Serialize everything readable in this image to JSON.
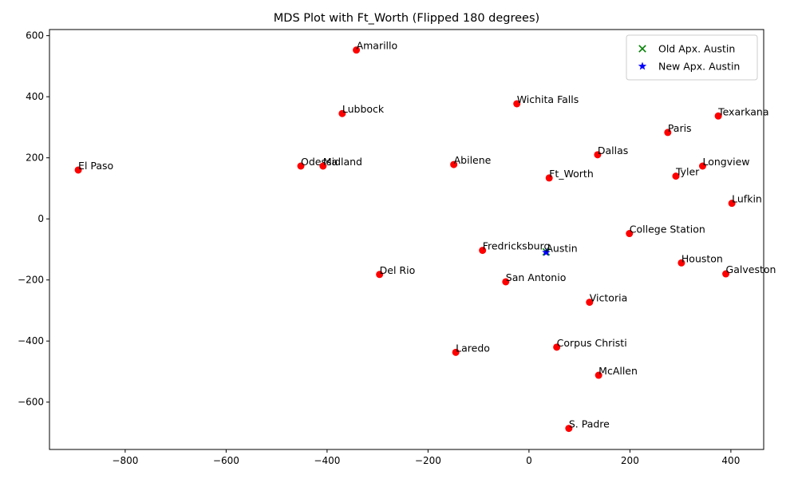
{
  "chart_data": {
    "type": "scatter",
    "title": "MDS Plot with Ft_Worth (Flipped 180 degrees)",
    "xlabel": "",
    "ylabel": "",
    "xlim": [
      -950,
      465
    ],
    "ylim": [
      -755,
      620
    ],
    "x_ticks": [
      -800,
      -600,
      -400,
      -200,
      0,
      200,
      400
    ],
    "y_ticks": [
      -600,
      -400,
      -200,
      0,
      200,
      400,
      600
    ],
    "grid": false,
    "legend_position": "top-right",
    "series": [
      {
        "color": "#ff0000",
        "marker": "circle",
        "points": [
          {
            "label": "Amarillo",
            "x": -342,
            "y": 553
          },
          {
            "label": "Wichita Falls",
            "x": -24,
            "y": 377
          },
          {
            "label": "Texarkana",
            "x": 375,
            "y": 337
          },
          {
            "label": "Lubbock",
            "x": -370,
            "y": 345
          },
          {
            "label": "Paris",
            "x": 275,
            "y": 283
          },
          {
            "label": "Dallas",
            "x": 136,
            "y": 210
          },
          {
            "label": "El Paso",
            "x": -893,
            "y": 160
          },
          {
            "label": "Odessa",
            "x": -452,
            "y": 173
          },
          {
            "label": "Midland",
            "x": -408,
            "y": 173
          },
          {
            "label": "Abilene",
            "x": -149,
            "y": 178
          },
          {
            "label": "Longview",
            "x": 344,
            "y": 173
          },
          {
            "label": "Tyler",
            "x": 291,
            "y": 140
          },
          {
            "label": "Ft_Worth",
            "x": 40,
            "y": 134
          },
          {
            "label": "Lufkin",
            "x": 402,
            "y": 51
          },
          {
            "label": "College Station",
            "x": 199,
            "y": -48
          },
          {
            "label": "Fredricksburg",
            "x": -92,
            "y": -103
          },
          {
            "label": "Houston",
            "x": 302,
            "y": -144
          },
          {
            "label": "Galveston",
            "x": 390,
            "y": -180
          },
          {
            "label": "Del Rio",
            "x": -296,
            "y": -182
          },
          {
            "label": "San Antonio",
            "x": -46,
            "y": -206
          },
          {
            "label": "Victoria",
            "x": 120,
            "y": -273
          },
          {
            "label": "Laredo",
            "x": -145,
            "y": -437
          },
          {
            "label": "Corpus Christi",
            "x": 55,
            "y": -420
          },
          {
            "label": "McAllen",
            "x": 138,
            "y": -512
          },
          {
            "label": "S. Padre",
            "x": 79,
            "y": -686
          }
        ]
      },
      {
        "name": "Old Apx. Austin",
        "color": "#008000",
        "marker": "x",
        "points": [
          {
            "label": "",
            "x": 34,
            "y": -108
          }
        ]
      },
      {
        "name": "New Apx. Austin",
        "color": "#0000ff",
        "marker": "star",
        "points": [
          {
            "label": "Austin",
            "x": 34,
            "y": -110
          }
        ]
      }
    ]
  }
}
